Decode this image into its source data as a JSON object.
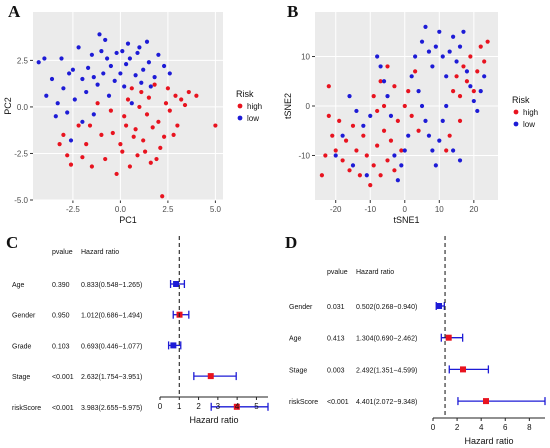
{
  "panel_letters": {
    "a": "A",
    "b": "B",
    "c": "C",
    "d": "D"
  },
  "colors": {
    "high": "#e8131f",
    "low": "#1d1bd6",
    "grid": "#ffffff",
    "panel_bg": "#ebebeb",
    "forest_line": "#1d1bd6",
    "forest_box": "#e8131f"
  },
  "chart_data": [
    {
      "type": "scatter",
      "id": "A",
      "xlabel": "PC1",
      "ylabel": "PC2",
      "xlim": [
        -4.6,
        5.4
      ],
      "ylim": [
        -5.0,
        5.1
      ],
      "xticks": [
        -2.5,
        0.0,
        2.5,
        5.0
      ],
      "xtick_labels": [
        "-2.5",
        "0.0",
        "2.5",
        "5.0"
      ],
      "yticks": [
        -5.0,
        -2.5,
        0.0,
        2.5
      ],
      "ytick_labels": [
        "-5.0",
        "-2.5",
        "0.0",
        "2.5"
      ],
      "legend": {
        "title": "Risk",
        "placement": "right",
        "entries": [
          "high",
          "low"
        ]
      },
      "grid": true,
      "series": [
        {
          "name": "high",
          "points": [
            [
              0.2,
              -0.5
            ],
            [
              0.8,
              -1.2
            ],
            [
              1.5,
              0.5
            ],
            [
              2.0,
              -0.8
            ],
            [
              -1.0,
              -1.5
            ],
            [
              -2.8,
              -2.6
            ],
            [
              -3.2,
              -2.0
            ],
            [
              0.5,
              -3.2
            ],
            [
              1.9,
              -2.8
            ],
            [
              2.4,
              0.2
            ],
            [
              3.2,
              0.4
            ],
            [
              4.0,
              0.6
            ],
            [
              5.0,
              -1.0
            ],
            [
              2.2,
              -4.8
            ],
            [
              1.0,
              0.0
            ],
            [
              -0.5,
              -0.2
            ],
            [
              0.0,
              -2.0
            ],
            [
              1.2,
              -1.8
            ],
            [
              2.8,
              -1.5
            ],
            [
              -1.5,
              -3.2
            ],
            [
              -2.2,
              -1.0
            ],
            [
              0.6,
              1.0
            ],
            [
              1.8,
              1.2
            ],
            [
              2.5,
              1.0
            ],
            [
              3.6,
              0.8
            ],
            [
              -0.8,
              -2.8
            ],
            [
              0.3,
              -1.0
            ],
            [
              1.4,
              -0.4
            ],
            [
              2.1,
              -2.2
            ],
            [
              -1.8,
              -2.0
            ],
            [
              0.9,
              -2.6
            ],
            [
              -0.2,
              -3.6
            ],
            [
              1.6,
              -3.0
            ],
            [
              2.6,
              -0.2
            ],
            [
              3.0,
              -1.0
            ],
            [
              -2.6,
              -3.1
            ],
            [
              -1.2,
              0.2
            ],
            [
              0.4,
              0.4
            ],
            [
              1.1,
              0.8
            ],
            [
              2.9,
              0.6
            ],
            [
              -0.4,
              -1.4
            ],
            [
              0.7,
              -1.6
            ],
            [
              1.3,
              -2.4
            ],
            [
              -1.6,
              -1.0
            ],
            [
              -2.0,
              -2.7
            ],
            [
              0.1,
              -2.4
            ],
            [
              1.7,
              -1.1
            ],
            [
              2.3,
              -1.6
            ],
            [
              -3.0,
              -1.5
            ],
            [
              3.4,
              0.1
            ]
          ]
        },
        {
          "name": "low",
          "points": [
            [
              -4.3,
              2.4
            ],
            [
              -4.0,
              2.6
            ],
            [
              -3.9,
              0.6
            ],
            [
              -2.5,
              2.0
            ],
            [
              -2.0,
              1.5
            ],
            [
              -1.5,
              2.8
            ],
            [
              -1.0,
              3.0
            ],
            [
              -0.5,
              2.2
            ],
            [
              0.0,
              1.8
            ],
            [
              0.5,
              2.6
            ],
            [
              1.0,
              3.2
            ],
            [
              1.5,
              2.4
            ],
            [
              2.0,
              2.8
            ],
            [
              -3.0,
              1.0
            ],
            [
              -2.8,
              -0.3
            ],
            [
              -3.4,
              -0.5
            ],
            [
              -1.8,
              0.8
            ],
            [
              -1.2,
              1.2
            ],
            [
              0.2,
              1.1
            ],
            [
              0.8,
              1.7
            ],
            [
              -2.2,
              3.2
            ],
            [
              -0.8,
              3.6
            ],
            [
              0.4,
              3.4
            ],
            [
              1.4,
              3.5
            ],
            [
              2.3,
              2.2
            ],
            [
              -3.6,
              1.5
            ],
            [
              -2.6,
              -1.8
            ],
            [
              -1.4,
              -0.4
            ],
            [
              -0.6,
              0.6
            ],
            [
              0.6,
              0.2
            ],
            [
              -3.1,
              2.6
            ],
            [
              -1.7,
              2.1
            ],
            [
              -0.2,
              2.9
            ],
            [
              1.2,
              2.0
            ],
            [
              1.8,
              1.6
            ],
            [
              -2.4,
              0.4
            ],
            [
              -0.9,
              1.8
            ],
            [
              0.9,
              2.9
            ],
            [
              -1.1,
              3.9
            ],
            [
              0.1,
              3.0
            ],
            [
              -2.0,
              -0.8
            ],
            [
              -3.3,
              0.2
            ],
            [
              -0.3,
              1.4
            ],
            [
              1.6,
              1.1
            ],
            [
              2.6,
              1.8
            ],
            [
              -1.4,
              1.6
            ],
            [
              -2.7,
              1.8
            ],
            [
              0.3,
              2.3
            ],
            [
              1.1,
              1.3
            ],
            [
              -0.7,
              2.6
            ]
          ]
        }
      ]
    },
    {
      "type": "scatter",
      "id": "B",
      "xlabel": "tSNE1",
      "ylabel": "tSNE2",
      "xlim": [
        -26,
        27
      ],
      "ylim": [
        -19,
        19
      ],
      "xticks": [
        -20,
        -10,
        0,
        10,
        20
      ],
      "xtick_labels": [
        "-20",
        "-10",
        "0",
        "10",
        "20"
      ],
      "yticks": [
        -10,
        0,
        10
      ],
      "ytick_labels": [
        "-10",
        "0",
        "10"
      ],
      "legend": {
        "title": "Risk",
        "placement": "right",
        "entries": [
          "high",
          "low"
        ]
      },
      "grid": true,
      "series": [
        {
          "name": "high",
          "points": [
            [
              -22,
              -2
            ],
            [
              -21,
              -6
            ],
            [
              -20,
              -9
            ],
            [
              -19,
              -3
            ],
            [
              -18,
              -11
            ],
            [
              -17,
              -7
            ],
            [
              -16,
              -13
            ],
            [
              -15,
              -4
            ],
            [
              -14,
              -9
            ],
            [
              -13,
              -14
            ],
            [
              -12,
              -6
            ],
            [
              -11,
              -10
            ],
            [
              -10,
              -16
            ],
            [
              -9,
              -12
            ],
            [
              -8,
              -8
            ],
            [
              -7,
              -14
            ],
            [
              -6,
              -5
            ],
            [
              -5,
              -11
            ],
            [
              -4,
              -7
            ],
            [
              -3,
              -13
            ],
            [
              -2,
              -3
            ],
            [
              -1,
              -9
            ],
            [
              0,
              0
            ],
            [
              1,
              3
            ],
            [
              2,
              -2
            ],
            [
              3,
              7
            ],
            [
              4,
              -5
            ],
            [
              -22,
              4
            ],
            [
              -23,
              -10
            ],
            [
              -24,
              -14
            ],
            [
              -9,
              2
            ],
            [
              -7,
              5
            ],
            [
              -5,
              8
            ],
            [
              -3,
              4
            ],
            [
              -6,
              0
            ],
            [
              -8,
              -1
            ],
            [
              14,
              3
            ],
            [
              15,
              6
            ],
            [
              16,
              2
            ],
            [
              17,
              8
            ],
            [
              18,
              5
            ],
            [
              19,
              10
            ],
            [
              20,
              3
            ],
            [
              21,
              7
            ],
            [
              22,
              12
            ],
            [
              23,
              9
            ],
            [
              24,
              13
            ],
            [
              13,
              -6
            ],
            [
              12,
              -9
            ],
            [
              16,
              -3
            ]
          ]
        },
        {
          "name": "low",
          "points": [
            [
              5,
              13
            ],
            [
              6,
              16
            ],
            [
              7,
              11
            ],
            [
              8,
              8
            ],
            [
              9,
              12
            ],
            [
              10,
              15
            ],
            [
              11,
              10
            ],
            [
              12,
              6
            ],
            [
              13,
              11
            ],
            [
              14,
              14
            ],
            [
              15,
              9
            ],
            [
              16,
              12
            ],
            [
              17,
              15
            ],
            [
              18,
              7
            ],
            [
              19,
              4
            ],
            [
              20,
              1
            ],
            [
              21,
              -1
            ],
            [
              22,
              3
            ],
            [
              23,
              6
            ],
            [
              3,
              10
            ],
            [
              2,
              6
            ],
            [
              4,
              3
            ],
            [
              5,
              0
            ],
            [
              6,
              -3
            ],
            [
              7,
              -6
            ],
            [
              8,
              -9
            ],
            [
              9,
              -12
            ],
            [
              10,
              -7
            ],
            [
              11,
              -3
            ],
            [
              12,
              0
            ],
            [
              1,
              -6
            ],
            [
              0,
              -9
            ],
            [
              -1,
              -12
            ],
            [
              -2,
              -15
            ],
            [
              -3,
              -10
            ],
            [
              -4,
              -2
            ],
            [
              -5,
              2
            ],
            [
              -6,
              5
            ],
            [
              -7,
              8
            ],
            [
              -8,
              10
            ],
            [
              -10,
              -2
            ],
            [
              -12,
              -4
            ],
            [
              -14,
              -1
            ],
            [
              -16,
              2
            ],
            [
              -18,
              -6
            ],
            [
              -20,
              -10
            ],
            [
              -15,
              -12
            ],
            [
              -11,
              -14
            ],
            [
              14,
              -9
            ],
            [
              16,
              -11
            ]
          ]
        }
      ]
    },
    {
      "type": "forest",
      "id": "C",
      "header_pvalue": "pvalue",
      "header_hr": "Hazard ratio",
      "xlabel": "Hazard ratio",
      "xlim": [
        0,
        5.6
      ],
      "xticks": [
        0,
        1,
        2,
        3,
        4,
        5
      ],
      "xtick_labels": [
        "0",
        "1",
        "2",
        "3",
        "4",
        "5"
      ],
      "reference": 1,
      "rows": [
        {
          "label": "Age",
          "pvalue": "0.390",
          "hr_text": "0.833(0.548−1.265)",
          "hr": 0.833,
          "lo": 0.548,
          "hi": 1.265
        },
        {
          "label": "Gender",
          "pvalue": "0.950",
          "hr_text": "1.012(0.686−1.494)",
          "hr": 1.012,
          "lo": 0.686,
          "hi": 1.494
        },
        {
          "label": "Grade",
          "pvalue": "0.103",
          "hr_text": "0.693(0.446−1.077)",
          "hr": 0.693,
          "lo": 0.446,
          "hi": 1.077
        },
        {
          "label": "Stage",
          "pvalue": "<0.001",
          "hr_text": "2.632(1.754−3.951)",
          "hr": 2.632,
          "lo": 1.754,
          "hi": 3.951
        },
        {
          "label": "riskScore",
          "pvalue": "<0.001",
          "hr_text": "3.983(2.655−5.975)",
          "hr": 3.983,
          "lo": 2.655,
          "hi": 5.975
        }
      ]
    },
    {
      "type": "forest",
      "id": "D",
      "header_pvalue": "pvalue",
      "header_hr": "Hazard ratio",
      "xlabel": "Hazard ratio",
      "xlim": [
        0,
        9.3
      ],
      "xticks": [
        0,
        2,
        4,
        6,
        8
      ],
      "xtick_labels": [
        "0",
        "2",
        "4",
        "6",
        "8"
      ],
      "reference": 1,
      "rows": [
        {
          "label": "Gender",
          "pvalue": "0.031",
          "hr_text": "0.502(0.268−0.940)",
          "hr": 0.502,
          "lo": 0.268,
          "hi": 0.94
        },
        {
          "label": "Age",
          "pvalue": "0.413",
          "hr_text": "1.304(0.690−2.462)",
          "hr": 1.304,
          "lo": 0.69,
          "hi": 2.462
        },
        {
          "label": "Stage",
          "pvalue": "0.003",
          "hr_text": "2.492(1.351−4.599)",
          "hr": 2.492,
          "lo": 1.351,
          "hi": 4.599
        },
        {
          "label": "riskScore",
          "pvalue": "<0.001",
          "hr_text": "4.401(2.072−9.348)",
          "hr": 4.401,
          "lo": 2.072,
          "hi": 9.348
        }
      ]
    }
  ]
}
